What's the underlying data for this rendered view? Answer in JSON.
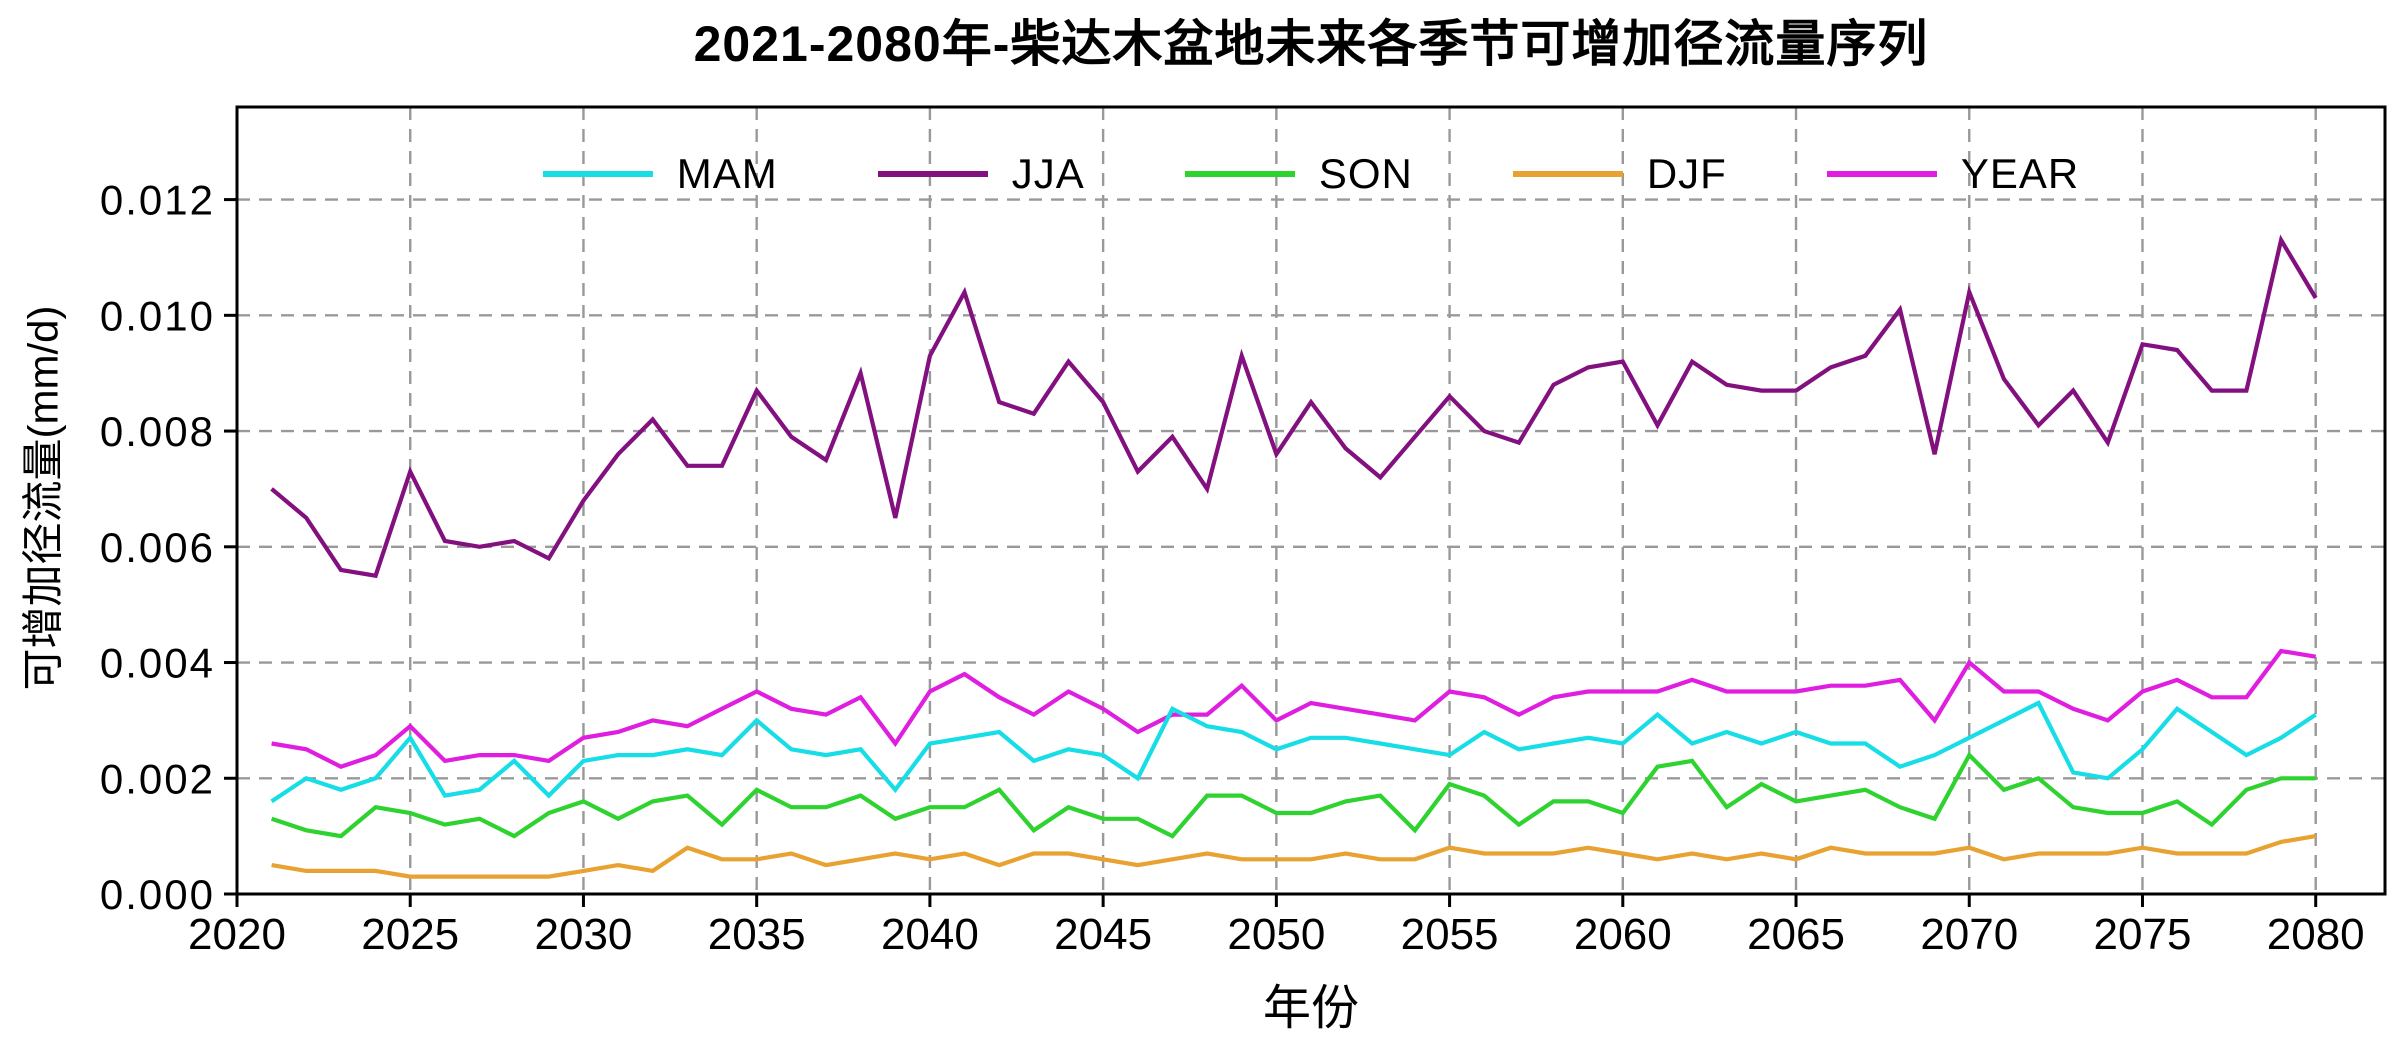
{
  "chart_data": {
    "type": "line",
    "title": "2021-2080年-柴达木盆地未来各季节可增加径流量序列",
    "xlabel": "年份",
    "ylabel": "可增加径流量(mm/d)",
    "x": [
      2021,
      2022,
      2023,
      2024,
      2025,
      2026,
      2027,
      2028,
      2029,
      2030,
      2031,
      2032,
      2033,
      2034,
      2035,
      2036,
      2037,
      2038,
      2039,
      2040,
      2041,
      2042,
      2043,
      2044,
      2045,
      2046,
      2047,
      2048,
      2049,
      2050,
      2051,
      2052,
      2053,
      2054,
      2055,
      2056,
      2057,
      2058,
      2059,
      2060,
      2061,
      2062,
      2063,
      2064,
      2065,
      2066,
      2067,
      2068,
      2069,
      2070,
      2071,
      2072,
      2073,
      2074,
      2075,
      2076,
      2077,
      2078,
      2079,
      2080
    ],
    "xlim": [
      2020,
      2082
    ],
    "ylim": [
      0,
      0.0136
    ],
    "x_ticks": [
      2020,
      2025,
      2030,
      2035,
      2040,
      2045,
      2050,
      2055,
      2060,
      2065,
      2070,
      2075,
      2080
    ],
    "y_ticks": [
      0.0,
      0.002,
      0.004,
      0.006,
      0.008,
      0.01,
      0.012
    ],
    "y_tick_decimals": 3,
    "grid": true,
    "grid_color": "#999999",
    "axis_color": "#000000",
    "legend_position": "top-inside",
    "series": [
      {
        "name": "MAM",
        "color": "#17DDE6",
        "values": [
          0.0016,
          0.002,
          0.0018,
          0.002,
          0.0027,
          0.0017,
          0.0018,
          0.0023,
          0.0017,
          0.0023,
          0.0024,
          0.0024,
          0.0025,
          0.0024,
          0.003,
          0.0025,
          0.0024,
          0.0025,
          0.0018,
          0.0026,
          0.0027,
          0.0028,
          0.0023,
          0.0025,
          0.0024,
          0.002,
          0.0032,
          0.0029,
          0.0028,
          0.0025,
          0.0027,
          0.0027,
          0.0026,
          0.0025,
          0.0024,
          0.0028,
          0.0025,
          0.0026,
          0.0027,
          0.0026,
          0.0031,
          0.0026,
          0.0028,
          0.0026,
          0.0028,
          0.0026,
          0.0026,
          0.0022,
          0.0024,
          0.0027,
          0.003,
          0.0033,
          0.0021,
          0.002,
          0.0025,
          0.0032,
          0.0028,
          0.0024,
          0.0027,
          0.0031
        ]
      },
      {
        "name": "JJA",
        "color": "#83107F",
        "values": [
          0.007,
          0.0065,
          0.0056,
          0.0055,
          0.0073,
          0.0061,
          0.006,
          0.0061,
          0.0058,
          0.0068,
          0.0076,
          0.0082,
          0.0074,
          0.0074,
          0.0087,
          0.0079,
          0.0075,
          0.009,
          0.0065,
          0.0093,
          0.0104,
          0.0085,
          0.0083,
          0.0092,
          0.0085,
          0.0073,
          0.0079,
          0.007,
          0.0093,
          0.0076,
          0.0085,
          0.0077,
          0.0072,
          0.0079,
          0.0086,
          0.008,
          0.0078,
          0.0088,
          0.0091,
          0.0092,
          0.0081,
          0.0092,
          0.0088,
          0.0087,
          0.0087,
          0.0091,
          0.0093,
          0.0101,
          0.0076,
          0.0104,
          0.0089,
          0.0081,
          0.0087,
          0.0078,
          0.0095,
          0.0094,
          0.0087,
          0.0087,
          0.0113,
          0.0103
        ]
      },
      {
        "name": "SON",
        "color": "#2FD32F",
        "values": [
          0.0013,
          0.0011,
          0.001,
          0.0015,
          0.0014,
          0.0012,
          0.0013,
          0.001,
          0.0014,
          0.0016,
          0.0013,
          0.0016,
          0.0017,
          0.0012,
          0.0018,
          0.0015,
          0.0015,
          0.0017,
          0.0013,
          0.0015,
          0.0015,
          0.0018,
          0.0011,
          0.0015,
          0.0013,
          0.0013,
          0.001,
          0.0017,
          0.0017,
          0.0014,
          0.0014,
          0.0016,
          0.0017,
          0.0011,
          0.0019,
          0.0017,
          0.0012,
          0.0016,
          0.0016,
          0.0014,
          0.0022,
          0.0023,
          0.0015,
          0.0019,
          0.0016,
          0.0017,
          0.0018,
          0.0015,
          0.0013,
          0.0024,
          0.0018,
          0.002,
          0.0015,
          0.0014,
          0.0014,
          0.0016,
          0.0012,
          0.0018,
          0.002,
          0.002
        ]
      },
      {
        "name": "DJF",
        "color": "#E8A232",
        "values": [
          0.0005,
          0.0004,
          0.0004,
          0.0004,
          0.0003,
          0.0003,
          0.0003,
          0.0003,
          0.0003,
          0.0004,
          0.0005,
          0.0004,
          0.0008,
          0.0006,
          0.0006,
          0.0007,
          0.0005,
          0.0006,
          0.0007,
          0.0006,
          0.0007,
          0.0005,
          0.0007,
          0.0007,
          0.0006,
          0.0005,
          0.0006,
          0.0007,
          0.0006,
          0.0006,
          0.0006,
          0.0007,
          0.0006,
          0.0006,
          0.0008,
          0.0007,
          0.0007,
          0.0007,
          0.0008,
          0.0007,
          0.0006,
          0.0007,
          0.0006,
          0.0007,
          0.0006,
          0.0008,
          0.0007,
          0.0007,
          0.0007,
          0.0008,
          0.0006,
          0.0007,
          0.0007,
          0.0007,
          0.0008,
          0.0007,
          0.0007,
          0.0007,
          0.0009,
          0.001
        ]
      },
      {
        "name": "YEAR",
        "color": "#DF1EDF",
        "values": [
          0.0026,
          0.0025,
          0.0022,
          0.0024,
          0.0029,
          0.0023,
          0.0024,
          0.0024,
          0.0023,
          0.0027,
          0.0028,
          0.003,
          0.0029,
          0.0032,
          0.0035,
          0.0032,
          0.0031,
          0.0034,
          0.0026,
          0.0035,
          0.0038,
          0.0034,
          0.0031,
          0.0035,
          0.0032,
          0.0028,
          0.0031,
          0.0031,
          0.0036,
          0.003,
          0.0033,
          0.0032,
          0.0031,
          0.003,
          0.0035,
          0.0034,
          0.0031,
          0.0034,
          0.0035,
          0.0035,
          0.0035,
          0.0037,
          0.0035,
          0.0035,
          0.0035,
          0.0036,
          0.0036,
          0.0037,
          0.003,
          0.004,
          0.0035,
          0.0035,
          0.0032,
          0.003,
          0.0035,
          0.0037,
          0.0034,
          0.0034,
          0.0042,
          0.0041
        ]
      }
    ],
    "draw_order": [
      "JJA",
      "SON",
      "DJF",
      "YEAR",
      "MAM"
    ]
  }
}
